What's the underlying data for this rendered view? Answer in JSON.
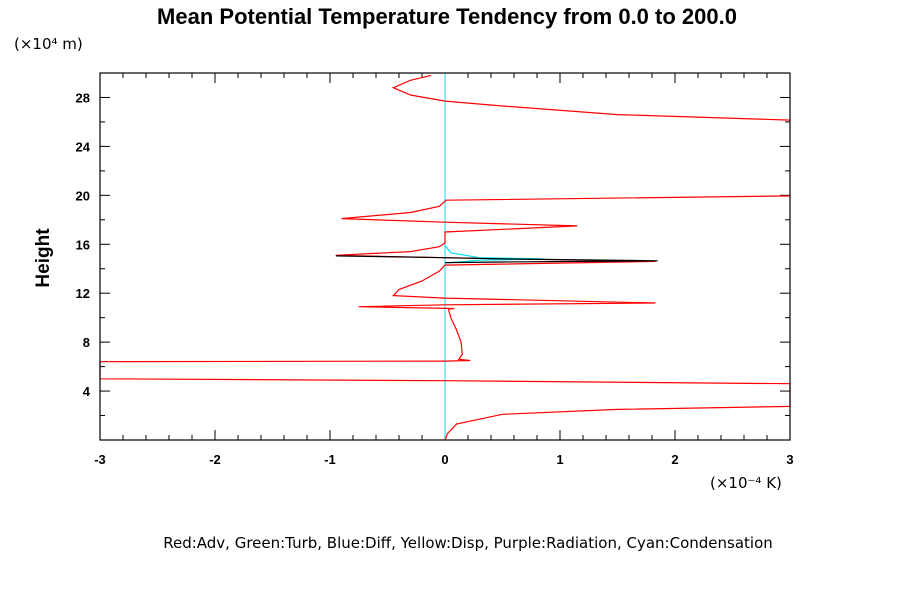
{
  "chart_data": {
    "type": "line",
    "title": "Mean Potential Temperature Tendency from 0.0 to 200.0",
    "xlabel": "",
    "ylabel": "Height",
    "x_units": "(×10⁻⁴ K)",
    "y_units": "(×10⁴ m)",
    "xlim": [
      -3,
      3
    ],
    "ylim": [
      0,
      30
    ],
    "xticks": [
      "-3",
      "-2",
      "-1",
      "0",
      "1",
      "2",
      "3"
    ],
    "xtick_values": [
      -3,
      -2,
      -1,
      0,
      1,
      2,
      3
    ],
    "yticks": [
      "4",
      "8",
      "12",
      "16",
      "20",
      "24",
      "28"
    ],
    "ytick_values": [
      4,
      8,
      12,
      16,
      20,
      24,
      28
    ],
    "grid": false,
    "legend_text": "Red:Adv, Green:Turb, Blue:Diff, Yellow:Disp, Purple:Radiation, Cyan:Condensation",
    "series": [
      {
        "name": "Zero line",
        "color": "#40e0f0",
        "points": [
          [
            0,
            0
          ],
          [
            0,
            30
          ]
        ]
      },
      {
        "name": "Adv",
        "color": "#ff0000",
        "points": [
          [
            0,
            0
          ],
          [
            0.02,
            0.5
          ],
          [
            0.1,
            1.3
          ],
          [
            0.5,
            2.1
          ],
          [
            1.5,
            2.5
          ],
          [
            3,
            2.75
          ],
          [
            3,
            4.6
          ],
          [
            0,
            4.85
          ],
          [
            -3,
            5.0
          ],
          [
            -3,
            6.4
          ],
          [
            0,
            6.45
          ],
          [
            0.22,
            6.5
          ],
          [
            0.12,
            6.6
          ],
          [
            0.15,
            7.0
          ],
          [
            0.14,
            8
          ],
          [
            0.1,
            9
          ],
          [
            0.05,
            10
          ],
          [
            0.03,
            10.7
          ],
          [
            0.08,
            10.75
          ],
          [
            -0.75,
            10.9
          ],
          [
            0,
            11.05
          ],
          [
            1.83,
            11.2
          ],
          [
            0,
            11.6
          ],
          [
            -0.45,
            11.8
          ],
          [
            -0.4,
            12.3
          ],
          [
            -0.2,
            13.0
          ],
          [
            -0.05,
            13.8
          ],
          [
            0,
            14.3
          ],
          [
            1.83,
            14.6
          ],
          [
            0,
            14.9
          ],
          [
            -0.95,
            15.1
          ],
          [
            -0.3,
            15.4
          ],
          [
            -0.05,
            15.8
          ],
          [
            0,
            16.1
          ],
          [
            0,
            17.0
          ],
          [
            1.15,
            17.5
          ],
          [
            0,
            17.8
          ],
          [
            -0.9,
            18.1
          ],
          [
            -0.3,
            18.6
          ],
          [
            -0.05,
            19.1
          ],
          [
            0.01,
            19.6
          ],
          [
            3,
            19.95
          ]
        ]
      },
      {
        "name": "Adv (upper)",
        "color": "#ff0000",
        "points": [
          [
            3,
            26.15
          ],
          [
            1.5,
            26.6
          ],
          [
            0.5,
            27.3
          ],
          [
            0,
            27.7
          ],
          [
            -0.3,
            28.2
          ],
          [
            -0.45,
            28.8
          ],
          [
            -0.3,
            29.4
          ],
          [
            -0.12,
            29.8
          ]
        ]
      },
      {
        "name": "Condensation",
        "color": "#00e0f0",
        "points": [
          [
            0,
            15.9
          ],
          [
            0.05,
            15.3
          ],
          [
            0.3,
            14.9
          ],
          [
            0.85,
            14.8
          ],
          [
            0.3,
            14.7
          ],
          [
            0.05,
            14.5
          ],
          [
            0,
            14.5
          ]
        ]
      },
      {
        "name": "Black",
        "color": "#000000",
        "points": [
          [
            -0.95,
            15.05
          ],
          [
            0,
            14.9
          ],
          [
            0.5,
            14.8
          ],
          [
            1.85,
            14.65
          ],
          [
            0.5,
            14.55
          ],
          [
            0,
            14.5
          ]
        ]
      }
    ]
  }
}
